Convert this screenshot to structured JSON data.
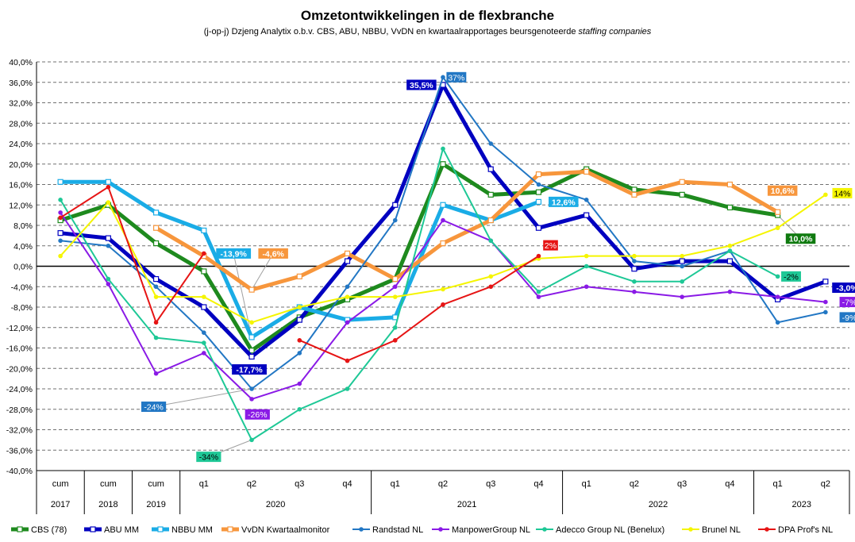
{
  "chart_data": {
    "type": "line",
    "title": "Omzetontwikkelingen in de flexbranche",
    "subtitle": "(j-op-j) Dzjeng Analytix o.b.v. CBS, ABU, NBBU, VvDN en kwartaalrapportages beursgenoteerde",
    "subtitle_italic": "staffing companies",
    "ylim": [
      -40,
      40
    ],
    "yticks": [
      "-40,0%",
      "-36,0%",
      "-32,0%",
      "-28,0%",
      "-24,0%",
      "-20,0%",
      "-16,0%",
      "-12,0%",
      "-8,0%",
      "-4,0%",
      "0,0%",
      "4,0%",
      "8,0%",
      "12,0%",
      "16,0%",
      "20,0%",
      "24,0%",
      "28,0%",
      "32,0%",
      "36,0%",
      "40,0%"
    ],
    "categories": [
      "cum",
      "cum",
      "cum",
      "q1",
      "q2",
      "q3",
      "q4",
      "q1",
      "q2",
      "q3",
      "q4",
      "q1",
      "q2",
      "q3",
      "q4",
      "q1",
      "q2"
    ],
    "groups": [
      {
        "label": "2017",
        "start": 0,
        "end": 0
      },
      {
        "label": "2018",
        "start": 1,
        "end": 1
      },
      {
        "label": "2019",
        "start": 2,
        "end": 2
      },
      {
        "label": "2020",
        "start": 3,
        "end": 6
      },
      {
        "label": "2021",
        "start": 7,
        "end": 10
      },
      {
        "label": "2022",
        "start": 11,
        "end": 14
      },
      {
        "label": "2023",
        "start": 15,
        "end": 16
      }
    ],
    "series": [
      {
        "name": "CBS (78)",
        "color": "#1e8a1e",
        "width": 5,
        "marker": "square",
        "values": [
          9,
          12,
          4.5,
          -1,
          -16.5,
          -10,
          -6.5,
          -2.5,
          20,
          14,
          14.5,
          19,
          15,
          14,
          11.5,
          10,
          null
        ]
      },
      {
        "name": "ABU MM",
        "color": "#0000c0",
        "width": 5,
        "marker": "square",
        "values": [
          6.5,
          5.5,
          -2.5,
          -8,
          -17.7,
          -10.5,
          1,
          12,
          35.5,
          19,
          7.5,
          10,
          -0.5,
          1,
          1,
          -6.5,
          -3
        ]
      },
      {
        "name": "NBBU MM",
        "color": "#1aace6",
        "width": 5,
        "marker": "square",
        "values": [
          16.5,
          16.5,
          10.5,
          7,
          -13.9,
          -8,
          -10.5,
          -10,
          12,
          9,
          12.6,
          null,
          null,
          null,
          null,
          null,
          null
        ]
      },
      {
        "name": "VvDN Kwartaalmonitor",
        "color": "#f7963c",
        "width": 5,
        "marker": "square",
        "values": [
          null,
          null,
          7.5,
          2,
          -4.6,
          -2,
          2.5,
          -2.5,
          4.5,
          9,
          18,
          18.5,
          14,
          16.5,
          16,
          10.6,
          null
        ]
      },
      {
        "name": "Randstad NL",
        "color": "#2277c4",
        "width": 2,
        "marker": "dot",
        "values": [
          5,
          4,
          -4,
          -13,
          -24,
          -17,
          -4,
          9,
          37,
          24,
          16,
          13,
          1,
          0,
          3,
          -11,
          -9
        ]
      },
      {
        "name": "ManpowerGroup NL",
        "color": "#8a1ae6",
        "width": 2,
        "marker": "dot",
        "values": [
          10.5,
          -3.5,
          -21,
          -17,
          -26,
          -23,
          -11,
          -4,
          9,
          5,
          -6,
          -4,
          -5,
          -6,
          -5,
          -6,
          -7
        ]
      },
      {
        "name": "Adecco Group NL (Benelux)",
        "color": "#1ec896",
        "width": 2,
        "marker": "dot",
        "values": [
          13,
          -2.5,
          -14,
          -15,
          -34,
          -28,
          -24,
          -12,
          23,
          5,
          -5,
          0,
          -3,
          -3,
          3,
          -2,
          null
        ]
      },
      {
        "name": "Brunel NL",
        "color": "#f5f500",
        "width": 2,
        "marker": "dot",
        "values": [
          2,
          12.5,
          -6,
          -6,
          -11,
          -8,
          -6,
          -6,
          -4.5,
          -2,
          1.5,
          2,
          2,
          2,
          4,
          7.5,
          14
        ]
      },
      {
        "name": "DPA Prof's NL",
        "color": "#e61414",
        "width": 2,
        "marker": "dot",
        "values": [
          9.5,
          15.5,
          -11,
          2.5,
          null,
          -14.5,
          -18.5,
          -14.5,
          -7.5,
          -4,
          2,
          null,
          null,
          null,
          null,
          null,
          null
        ]
      }
    ],
    "annotations": [
      {
        "text": "35,5%",
        "bg": "#0000c0",
        "fg": "#ffffff",
        "x": 7.55,
        "y": 35.5,
        "lx": 8,
        "ly": 35.5
      },
      {
        "text": "37%",
        "bg": "#2277c4",
        "fg": "#ffffff",
        "x": 8.28,
        "y": 37,
        "lx": null,
        "ly": null
      },
      {
        "text": "-13,9%",
        "bg": "#1aace6",
        "fg": "#ffffff",
        "x": 3.62,
        "y": 2.5,
        "lx": 4,
        "ly": -13.9
      },
      {
        "text": "-4,6%",
        "bg": "#f7963c",
        "fg": "#ffffff",
        "x": 4.45,
        "y": 2.5,
        "lx": 4,
        "ly": -4.6
      },
      {
        "text": "-17,7%",
        "bg": "#0000c0",
        "fg": "#ffffff",
        "x": 3.95,
        "y": -20.2,
        "lx": null,
        "ly": null
      },
      {
        "text": "-24%",
        "bg": "#2277c4",
        "fg": "#ffffff",
        "x": 1.95,
        "y": -27.5,
        "lx": 4,
        "ly": -24
      },
      {
        "text": "-26%",
        "bg": "#8a1ae6",
        "fg": "#ffffff",
        "x": 4.12,
        "y": -29,
        "lx": null,
        "ly": null
      },
      {
        "text": "-34%",
        "bg": "#1ec896",
        "fg": "#000000",
        "x": 3.1,
        "y": -37.3,
        "lx": 4,
        "ly": -34
      },
      {
        "text": "12,6%",
        "bg": "#1aace6",
        "fg": "#ffffff",
        "x": 10.52,
        "y": 12.6,
        "lx": null,
        "ly": null
      },
      {
        "text": "2%",
        "bg": "#e61414",
        "fg": "#ffffff",
        "x": 10.25,
        "y": 4.1,
        "lx": null,
        "ly": null
      },
      {
        "text": "10,6%",
        "bg": "#f7963c",
        "fg": "#ffffff",
        "x": 15.1,
        "y": 14.8,
        "lx": null,
        "ly": null
      },
      {
        "text": "14%",
        "bg": "#f5f500",
        "fg": "#000000",
        "x": 16.35,
        "y": 14.3,
        "lx": null,
        "ly": null
      },
      {
        "text": "10,0%",
        "bg": "#0f7a0f",
        "fg": "#ffffff",
        "x": 15.48,
        "y": 5.4,
        "lx": 15,
        "ly": 10
      },
      {
        "text": "-2%",
        "bg": "#1ec896",
        "fg": "#000000",
        "x": 15.28,
        "y": -2,
        "lx": null,
        "ly": null
      },
      {
        "text": "-3,0%",
        "bg": "#0000c0",
        "fg": "#ffffff",
        "x": 16.45,
        "y": -4.2,
        "lx": null,
        "ly": null
      },
      {
        "text": "-7%",
        "bg": "#8a1ae6",
        "fg": "#ffffff",
        "x": 16.5,
        "y": -7,
        "lx": null,
        "ly": null
      },
      {
        "text": "-9%",
        "bg": "#2277c4",
        "fg": "#ffffff",
        "x": 16.5,
        "y": -10,
        "lx": null,
        "ly": null
      }
    ],
    "grid": "dashed",
    "legend_position": "bottom"
  }
}
